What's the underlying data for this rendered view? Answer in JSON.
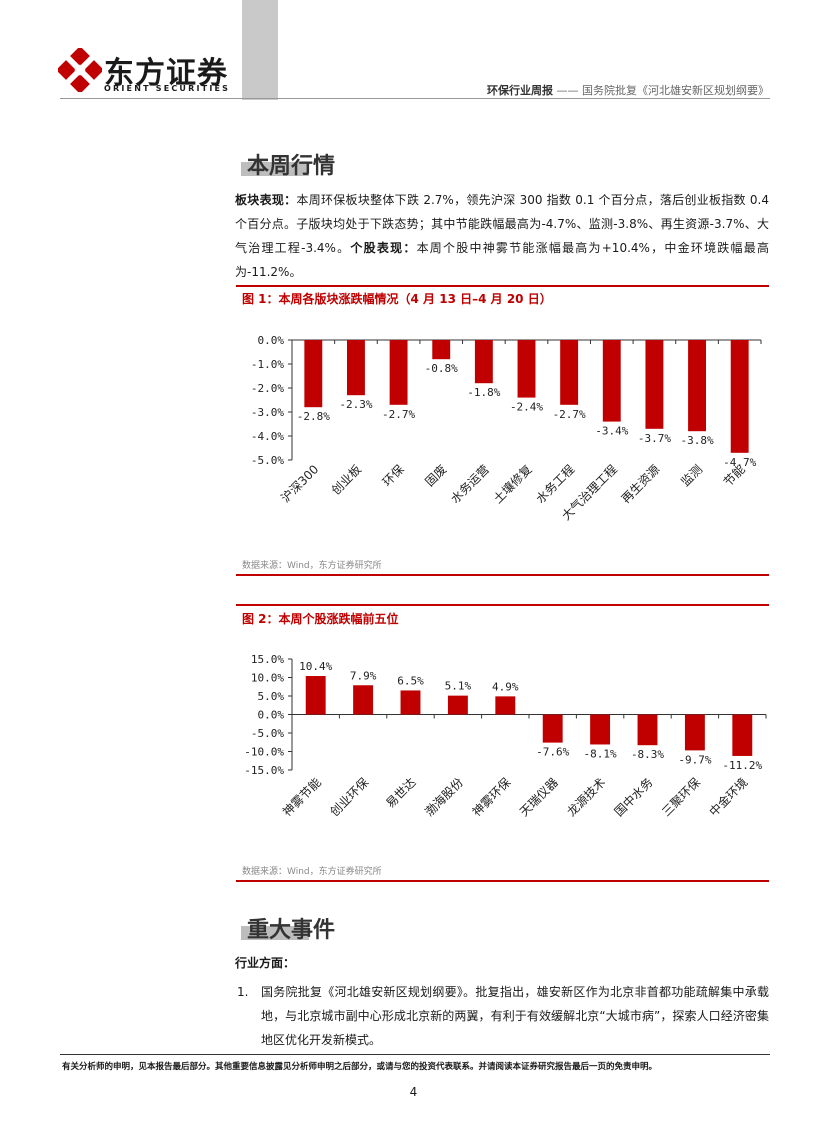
{
  "header": {
    "logo_cn": "东方证券",
    "logo_en": "ORIENT SECURITIES",
    "report_type": "环保行业周报",
    "report_title": "—— 国务院批复《河北雄安新区规划纲要》",
    "brand_color": "#c00000"
  },
  "section1": {
    "title": "本周行情",
    "para_label1": "板块表现：",
    "para_text1": "本周环保板块整体下跌 2.7%，领先沪深 300 指数 0.1 个百分点，落后创业板指数 0.4 个百分点。子版块均处于下跌态势；其中节能跌幅最高为-4.7%、监测-3.8%、再生资源-3.7%、大气治理工程-3.4%。",
    "para_label2": "个股表现：",
    "para_text2": "本周个股中神雾节能涨幅最高为+10.4%，中金环境跌幅最高为-11.2%。"
  },
  "figure1": {
    "title": "图 1：本周各版块涨跌幅情况（4 月 13 日–4 月 20 日）",
    "source": "数据来源：Wind，东方证券研究所"
  },
  "figure2": {
    "title": "图 2：本周个股涨跌幅前五位",
    "source": "数据来源：Wind，东方证券研究所"
  },
  "chart_data": [
    {
      "type": "bar",
      "categories": [
        "沪深300",
        "创业板",
        "环保",
        "固废",
        "水务运营",
        "土壤修复",
        "水务工程",
        "大气治理工程",
        "再生资源",
        "监测",
        "节能"
      ],
      "values": [
        -2.8,
        -2.3,
        -2.7,
        -0.8,
        -1.8,
        -2.4,
        -2.7,
        -3.4,
        -3.7,
        -3.8,
        -4.7
      ],
      "data_labels": [
        "-2.8%",
        "-2.3%",
        "-2.7%",
        "-0.8%",
        "-1.8%",
        "-2.4%",
        "-2.7%",
        "-3.4%",
        "-3.7%",
        "-3.8%",
        "-4.7%"
      ],
      "ylim": [
        -5.0,
        0.0
      ],
      "yticks": [
        0.0,
        -1.0,
        -2.0,
        -3.0,
        -4.0,
        -5.0
      ],
      "ytick_labels": [
        "0.0%",
        "-1.0%",
        "-2.0%",
        "-3.0%",
        "-4.0%",
        "-5.0%"
      ],
      "bar_color": "#c00000",
      "grid": false
    },
    {
      "type": "bar",
      "categories": [
        "神雾节能",
        "创业环保",
        "易世达",
        "渤海股份",
        "神雾环保",
        "天瑞仪器",
        "龙源技术",
        "国中水务",
        "三聚环保",
        "中金环境"
      ],
      "values": [
        10.4,
        7.9,
        6.5,
        5.1,
        4.9,
        -7.6,
        -8.1,
        -8.3,
        -9.7,
        -11.2
      ],
      "data_labels": [
        "10.4%",
        "7.9%",
        "6.5%",
        "5.1%",
        "4.9%",
        "-7.6%",
        "-8.1%",
        "-8.3%",
        "-9.7%",
        "-11.2%"
      ],
      "ylim": [
        -15.0,
        15.0
      ],
      "yticks": [
        15.0,
        10.0,
        5.0,
        0.0,
        -5.0,
        -10.0,
        -15.0
      ],
      "ytick_labels": [
        "15.0%",
        "10.0%",
        "5.0%",
        "0.0%",
        "-5.0%",
        "-10.0%",
        "-15.0%"
      ],
      "bar_color": "#c00000",
      "grid": false
    }
  ],
  "section2": {
    "title": "重大事件",
    "subhead": "行业方面：",
    "item1_num": "1.",
    "item1_text": "国务院批复《河北雄安新区规划纲要》。批复指出，雄安新区作为北京非首都功能疏解集中承载地，与北京城市副中心形成北京新的两翼，有利于有效缓解北京“大城市病”，探索人口经济密集地区优化开发新模式。"
  },
  "footer": {
    "disclaimer": "有关分析师的申明，见本报告最后部分。其他重要信息披露见分析师申明之后部分，或请与您的投资代表联系。并请阅读本证券研究报告最后一页的免责申明。",
    "page": "4"
  }
}
